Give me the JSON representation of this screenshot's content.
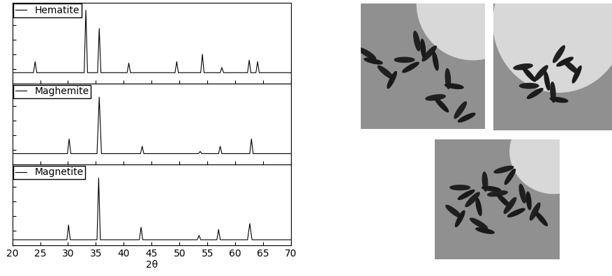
{
  "chart_data": [
    {
      "type": "line",
      "legend": "upper left",
      "tick_labels": false,
      "x": [
        20,
        23.8,
        24.1,
        24.4,
        32.9,
        33.2,
        33.5,
        35.3,
        35.6,
        35.9,
        40.6,
        40.9,
        41.2,
        49.2,
        49.5,
        49.8,
        53.8,
        54.1,
        54.4,
        57.3,
        57.6,
        57.9,
        62.2,
        62.5,
        62.8,
        63.7,
        64.0,
        64.3,
        70
      ],
      "series": [
        {
          "name": "Hematite",
          "color": "#000000",
          "values": [
            15,
            15,
            30,
            15,
            15,
            100,
            15,
            15,
            75,
            15,
            15,
            28,
            15,
            15,
            30,
            15,
            15,
            40,
            15,
            15,
            22,
            15,
            15,
            32,
            15,
            15,
            30,
            15,
            15
          ]
        }
      ],
      "xlim": [
        20,
        70
      ],
      "xticks": [
        20,
        25,
        30,
        35,
        40,
        45,
        50,
        55,
        60,
        65,
        70
      ],
      "ylim": [
        0,
        110
      ],
      "yticks": [
        0,
        20,
        40,
        60,
        80,
        100
      ]
    },
    {
      "type": "line",
      "legend": "upper left",
      "tick_labels": false,
      "x": [
        20,
        29.9,
        30.2,
        30.5,
        35.2,
        35.6,
        36.0,
        43.0,
        43.3,
        43.6,
        53.4,
        53.7,
        54.0,
        57.0,
        57.3,
        57.6,
        62.6,
        62.9,
        63.2,
        70
      ],
      "series": [
        {
          "name": "Maghemite",
          "color": "#000000",
          "values": [
            15,
            15,
            35,
            15,
            15,
            92,
            15,
            15,
            25,
            15,
            15,
            18,
            15,
            15,
            25,
            15,
            15,
            35,
            15,
            15
          ]
        }
      ],
      "xlim": [
        20,
        70
      ],
      "xticks": [
        20,
        25,
        30,
        35,
        40,
        45,
        50,
        55,
        60,
        65,
        70
      ],
      "ylim": [
        0,
        110
      ],
      "yticks": [
        0,
        20,
        40,
        60,
        80,
        100
      ]
    },
    {
      "type": "line",
      "legend": "upper left",
      "tick_labels": "x",
      "x_label": "2θ",
      "x": [
        20,
        29.8,
        30.1,
        30.4,
        35.2,
        35.5,
        35.8,
        42.8,
        43.1,
        43.4,
        53.2,
        53.5,
        53.8,
        56.7,
        57.0,
        57.3,
        62.2,
        62.6,
        63.0,
        70
      ],
      "series": [
        {
          "name": "Magnetite",
          "color": "#000000",
          "values": [
            8,
            8,
            28,
            8,
            8,
            92,
            8,
            8,
            25,
            8,
            8,
            14,
            8,
            8,
            22,
            8,
            8,
            30,
            8,
            8
          ]
        }
      ],
      "xlim": [
        20,
        70
      ],
      "xticks": [
        20,
        25,
        30,
        35,
        40,
        45,
        50,
        55,
        60,
        65,
        70
      ],
      "ylim": [
        0,
        110
      ],
      "yticks": [
        0,
        20,
        40,
        60,
        80,
        100
      ]
    }
  ]
}
